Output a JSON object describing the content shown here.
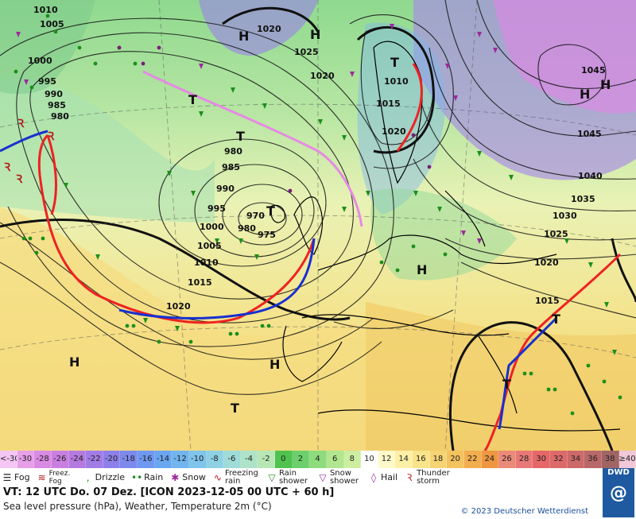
{
  "map": {
    "pressure_labels": [
      {
        "text": "1010"
      },
      {
        "text": "1005"
      },
      {
        "text": "1000"
      },
      {
        "text": "995"
      },
      {
        "text": "990"
      },
      {
        "text": "985"
      },
      {
        "text": "980"
      },
      {
        "text": "1020"
      },
      {
        "text": "1025"
      },
      {
        "text": "1020"
      },
      {
        "text": "1010"
      },
      {
        "text": "1015"
      },
      {
        "text": "1020"
      },
      {
        "text": "980"
      },
      {
        "text": "985"
      },
      {
        "text": "990"
      },
      {
        "text": "995"
      },
      {
        "text": "970"
      },
      {
        "text": "980"
      },
      {
        "text": "975"
      },
      {
        "text": "1000"
      },
      {
        "text": "1005"
      },
      {
        "text": "1010"
      },
      {
        "text": "1015"
      },
      {
        "text": "1020"
      },
      {
        "text": "1045"
      },
      {
        "text": "1045"
      },
      {
        "text": "1040"
      },
      {
        "text": "1035"
      },
      {
        "text": "1030"
      },
      {
        "text": "1025"
      },
      {
        "text": "1020"
      },
      {
        "text": "1015"
      }
    ],
    "centers": [
      {
        "text": "H"
      },
      {
        "text": "H"
      },
      {
        "text": "T"
      },
      {
        "text": "T"
      },
      {
        "text": "T"
      },
      {
        "text": "H"
      },
      {
        "text": "H"
      },
      {
        "text": "T"
      },
      {
        "text": "H"
      },
      {
        "text": "H"
      },
      {
        "text": "H"
      },
      {
        "text": "T"
      },
      {
        "text": "T"
      },
      {
        "text": "T"
      }
    ]
  },
  "scale": {
    "values": [
      "<-30",
      "-30",
      "-28",
      "-26",
      "-24",
      "-22",
      "-20",
      "-18",
      "-16",
      "-14",
      "-12",
      "-10",
      "-8",
      "-6",
      "-4",
      "-2",
      "0",
      "2",
      "4",
      "6",
      "8",
      "10",
      "12",
      "14",
      "16",
      "18",
      "20",
      "22",
      "24",
      "26",
      "28",
      "30",
      "32",
      "34",
      "36",
      "38",
      "≥40 °C"
    ],
    "colors": [
      "#f3c6f3",
      "#e79fe8",
      "#d98ae3",
      "#c97fe0",
      "#b57ae0",
      "#a27ce6",
      "#8d80ea",
      "#7c8aee",
      "#6f98f1",
      "#6aa6f1",
      "#71b5ee",
      "#7fc4ea",
      "#8fd1e4",
      "#9fdbd8",
      "#aee3c8",
      "#b8e7b6",
      "#4fc24f",
      "#6bd06b",
      "#8edc7e",
      "#b1e68f",
      "#cdeea0",
      "#ffffff",
      "#fdf9c8",
      "#fbf0a6",
      "#f9e48b",
      "#f6d473",
      "#f4c25e",
      "#f1ad4e",
      "#ee9740",
      "#eb8a78",
      "#e87878",
      "#e56767",
      "#dd6a6a",
      "#cc6a6a",
      "#b86868",
      "#a16464",
      "#f0c8d8"
    ]
  },
  "legend": {
    "items": [
      {
        "icon": "fog-icon",
        "label": "Fog"
      },
      {
        "icon": "freezing-fog-icon",
        "label": "Freez. Fog"
      },
      {
        "icon": "drizzle-icon",
        "label": "Drizzle"
      },
      {
        "icon": "rain-icon",
        "label": "Rain"
      },
      {
        "icon": "snow-icon",
        "label": "Snow"
      },
      {
        "icon": "freezing-rain-icon",
        "label": "Freezing rain"
      },
      {
        "icon": "rain-shower-icon",
        "label": "Rain shower"
      },
      {
        "icon": "snow-shower-icon",
        "label": "Snow shower"
      },
      {
        "icon": "hail-icon",
        "label": "Hail"
      },
      {
        "icon": "thunderstorm-icon",
        "label": "Thunder storm"
      }
    ]
  },
  "info": {
    "valid_time": "VT: 12 UTC Do.   07 Dez. [ICON 2023-12-05  00 UTC + 60 h]",
    "description": "Sea level pressure (hPa), Weather, Temperature 2m (°C)",
    "copyright": "© 2023 Deutscher Wetterdienst",
    "logo": "DWD"
  }
}
